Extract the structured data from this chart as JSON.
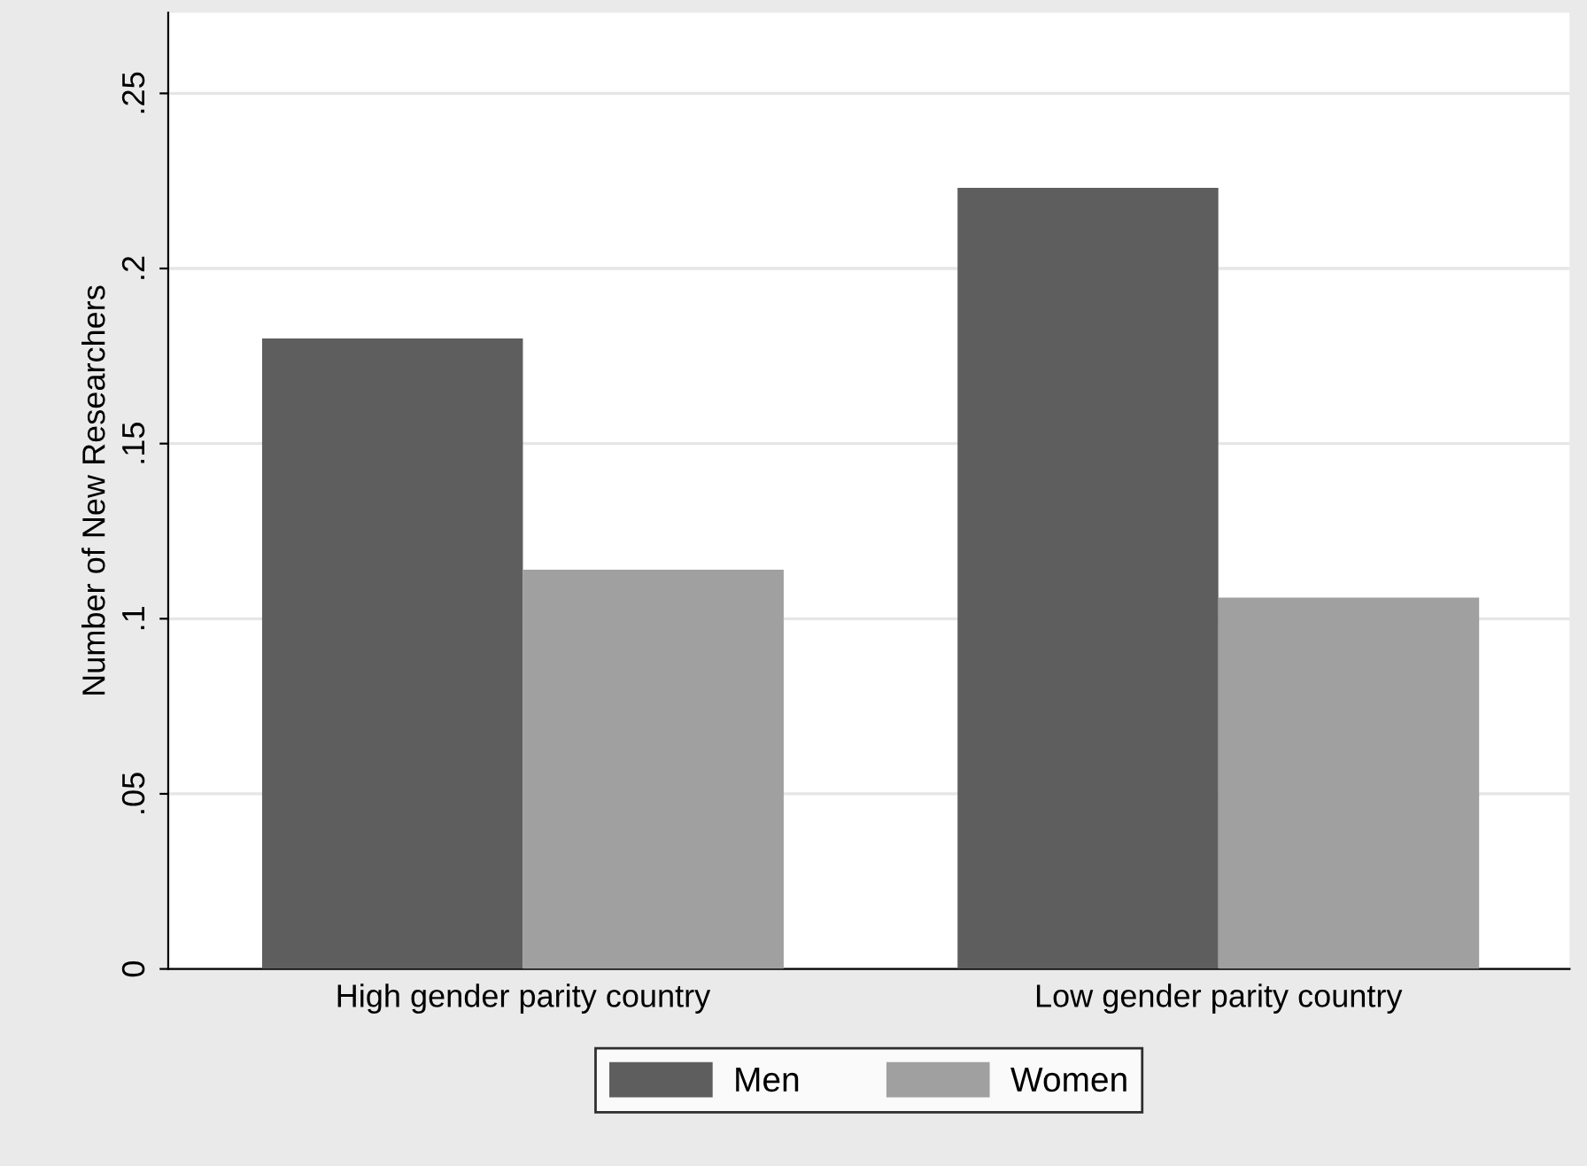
{
  "chart_data": {
    "type": "bar",
    "ylabel": "Number of New Researchers",
    "categories": [
      "High gender parity country",
      "Low gender parity country"
    ],
    "series": [
      {
        "name": "Men",
        "color": "#5e5e5e",
        "values": [
          0.18,
          0.223
        ]
      },
      {
        "name": "Women",
        "color": "#a0a0a0",
        "values": [
          0.114,
          0.106
        ]
      }
    ],
    "ylim": [
      0,
      0.273
    ],
    "yticks": [
      {
        "value": 0,
        "label": "0"
      },
      {
        "value": 0.05,
        "label": ".05"
      },
      {
        "value": 0.1,
        "label": ".1"
      },
      {
        "value": 0.15,
        "label": ".15"
      },
      {
        "value": 0.2,
        "label": ".2"
      },
      {
        "value": 0.25,
        "label": ".25"
      }
    ],
    "grid": "y",
    "legend": "bottom"
  }
}
